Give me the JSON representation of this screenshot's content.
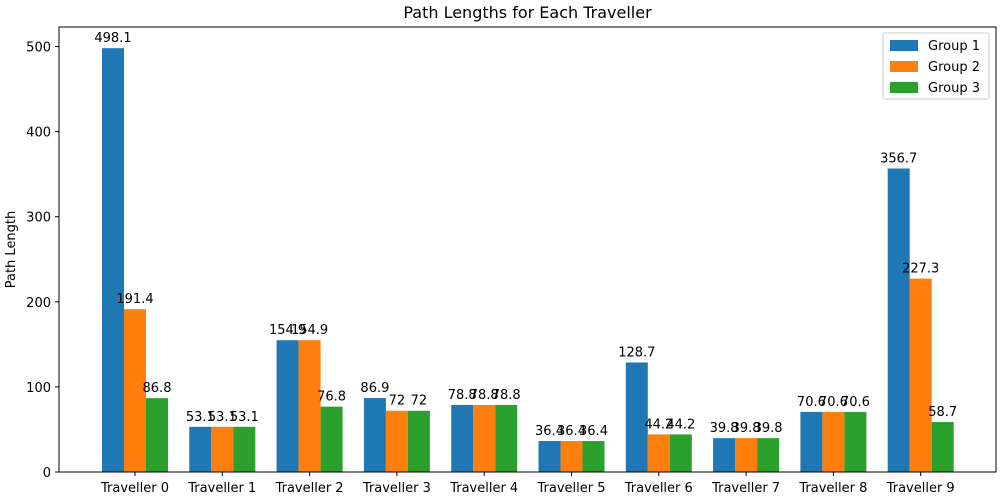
{
  "chart_data": {
    "type": "bar",
    "title": "Path Lengths for Each Traveller",
    "xlabel": "",
    "ylabel": "Path Length",
    "ylim": [
      0,
      523
    ],
    "yticks": [
      0,
      100,
      200,
      300,
      400,
      500
    ],
    "categories": [
      "Traveller 0",
      "Traveller 1",
      "Traveller 2",
      "Traveller 3",
      "Traveller 4",
      "Traveller 5",
      "Traveller 6",
      "Traveller 7",
      "Traveller 8",
      "Traveller 9"
    ],
    "series": [
      {
        "name": "Group 1",
        "color": "#1f77b4",
        "values": [
          498.1,
          53.1,
          154.9,
          86.9,
          78.8,
          36.4,
          128.7,
          39.8,
          70.6,
          356.7
        ],
        "labels": [
          "498.1",
          "53.1",
          "154.9",
          "86.9",
          "78.8",
          "36.4",
          "128.7",
          "39.8",
          "70.6",
          "356.7"
        ]
      },
      {
        "name": "Group 2",
        "color": "#ff7f0e",
        "values": [
          191.4,
          53.1,
          154.9,
          72,
          78.8,
          36.4,
          44.2,
          39.8,
          70.6,
          227.3
        ],
        "labels": [
          "191.4",
          "53.1",
          "154.9",
          "72",
          "78.8",
          "36.4",
          "44.2",
          "39.8",
          "70.6",
          "227.3"
        ]
      },
      {
        "name": "Group 3",
        "color": "#2ca02c",
        "values": [
          86.8,
          53.1,
          76.8,
          72,
          78.8,
          36.4,
          44.2,
          39.8,
          70.6,
          58.7
        ],
        "labels": [
          "86.8",
          "53.1",
          "76.8",
          "72",
          "78.8",
          "36.4",
          "44.2",
          "39.8",
          "70.6",
          "58.7"
        ]
      }
    ],
    "legend": "top-right",
    "grid": false
  }
}
